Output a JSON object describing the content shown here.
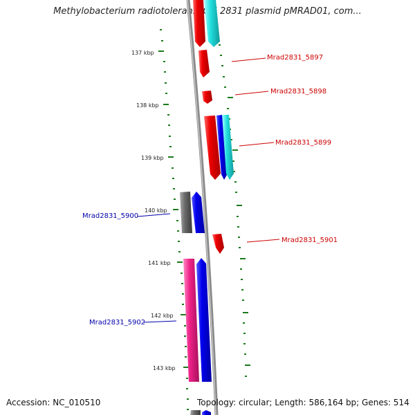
{
  "title": "Methylobacterium radiotolerans JCM 2831 plasmid pMRAD01, com...",
  "footer": {
    "accession": "Accession: NC_010510",
    "summary": "Topology: circular; Length: 586,164 bp; Genes: 514"
  },
  "colors": {
    "backbone": "#8a8a8a",
    "tick": "#1a7a1a",
    "forward_label": "#cc0000",
    "reverse_label": "#0000aa",
    "red": "#ee0000",
    "blue": "#0000ee",
    "cyan": "#22e0e0",
    "grey": "#6a6a6a",
    "pink": "#ee2288"
  },
  "ticks": [
    {
      "label": "137 kbp"
    },
    {
      "label": "138 kbp"
    },
    {
      "label": "139 kbp"
    },
    {
      "label": "140 kbp"
    },
    {
      "label": "141 kbp"
    },
    {
      "label": "142 kbp"
    },
    {
      "label": "143 kbp"
    }
  ],
  "gene_labels": [
    {
      "text": "Mrad2831_5897",
      "strand": "forward"
    },
    {
      "text": "Mrad2831_5898",
      "strand": "forward"
    },
    {
      "text": "Mrad2831_5899",
      "strand": "forward"
    },
    {
      "text": "Mrad2831_5900",
      "strand": "reverse"
    },
    {
      "text": "Mrad2831_5901",
      "strand": "forward"
    },
    {
      "text": "Mrad2831_5902",
      "strand": "reverse"
    }
  ]
}
